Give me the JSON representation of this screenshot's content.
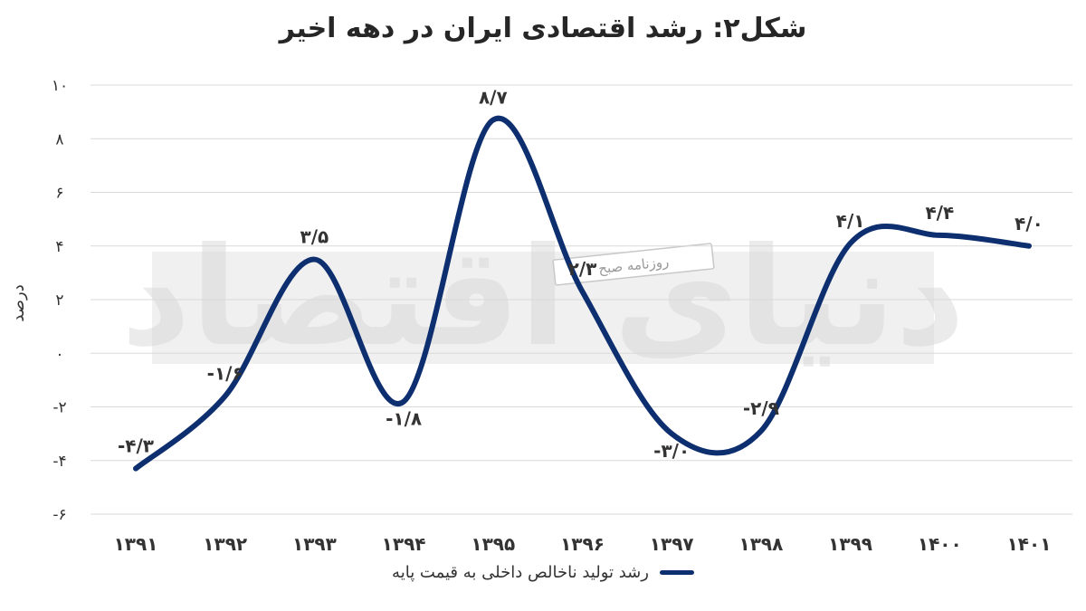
{
  "title": "شکل۲: رشد اقتصادی ایران در دهه اخیر",
  "watermark": {
    "brand_text": "دنیای اقتصاد",
    "badge_text": "روزنامه صبح"
  },
  "colors": {
    "line": "#0d2f6f",
    "grid": "#d9d9d9",
    "watermark_band": "#ebebeb"
  },
  "chart_data": {
    "type": "line",
    "title": "شکل۲: رشد اقتصادی ایران در دهه اخیر",
    "xlabel": "",
    "ylabel": "درصد",
    "categories": [
      "۱۳۹۱",
      "۱۳۹۲",
      "۱۳۹۳",
      "۱۳۹۴",
      "۱۳۹۵",
      "۱۳۹۶",
      "۱۳۹۷",
      "۱۳۹۸",
      "۱۳۹۹",
      "۱۴۰۰",
      "۱۴۰۱"
    ],
    "series": [
      {
        "name": "رشد تولید ناخالص داخلی به قیمت پایه",
        "values": [
          -4.3,
          -1.6,
          3.5,
          -1.8,
          8.7,
          2.3,
          -3.0,
          -2.9,
          4.1,
          4.4,
          4.0
        ],
        "data_labels": [
          "-۴/۳",
          "-۱/۶",
          "۳/۵",
          "-۱/۸",
          "۸/۷",
          "۲/۳",
          "-۳/۰",
          "-۲/۹",
          "۴/۱",
          "۴/۴",
          "۴/۰"
        ]
      }
    ],
    "ylim": [
      -6,
      10
    ],
    "yticks": [
      -6,
      -4,
      -2,
      0,
      2,
      4,
      6,
      8,
      10
    ],
    "ytick_labels": [
      "-۶",
      "-۴",
      "-۲",
      "۰",
      "۲",
      "۴",
      "۶",
      "۸",
      "۱۰"
    ],
    "grid": true,
    "legend": "bottom"
  }
}
